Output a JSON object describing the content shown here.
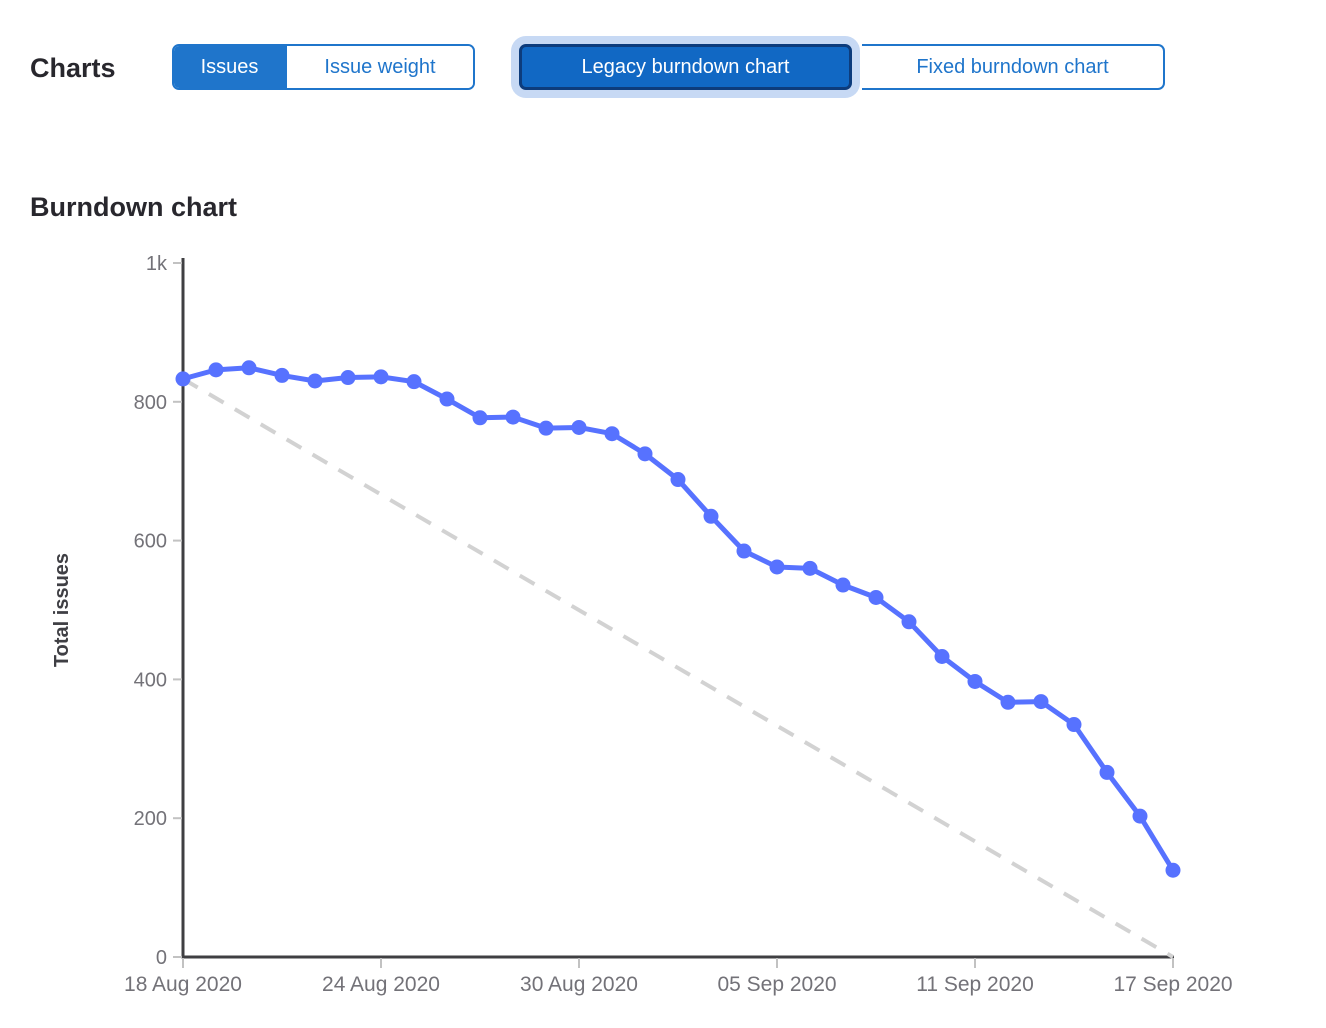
{
  "header": {
    "charts_label": "Charts",
    "type_toggle": {
      "issues": "Issues",
      "issue_weight": "Issue weight",
      "selected": "Issues"
    },
    "chart_toggle": {
      "legacy": "Legacy burndown chart",
      "fixed": "Fixed burndown chart",
      "selected": "Legacy burndown chart"
    }
  },
  "section_title": "Burndown chart",
  "chart_data": {
    "type": "line",
    "title": "Burndown chart",
    "xlabel": "",
    "ylabel": "Total issues",
    "ylim": [
      0,
      1000
    ],
    "grid": false,
    "legend_position": "none",
    "y_ticks": [
      {
        "value": 0,
        "label": "0"
      },
      {
        "value": 200,
        "label": "200"
      },
      {
        "value": 400,
        "label": "400"
      },
      {
        "value": 600,
        "label": "600"
      },
      {
        "value": 800,
        "label": "800"
      },
      {
        "value": 1000,
        "label": "1k"
      }
    ],
    "x_range_days": [
      0,
      30
    ],
    "x_ticks": [
      {
        "day": 0,
        "label": "18 Aug 2020"
      },
      {
        "day": 6,
        "label": "24 Aug 2020"
      },
      {
        "day": 12,
        "label": "30 Aug 2020"
      },
      {
        "day": 18,
        "label": "05 Sep 2020"
      },
      {
        "day": 24,
        "label": "11 Sep 2020"
      },
      {
        "day": 30,
        "label": "17 Sep 2020"
      }
    ],
    "series": [
      {
        "name": "Total issues remaining",
        "type": "line",
        "style": "solid",
        "marker": "circle",
        "color": "#5772ff",
        "x_days": [
          0,
          1,
          2,
          3,
          4,
          5,
          6,
          7,
          8,
          9,
          10,
          11,
          12,
          13,
          14,
          15,
          16,
          17,
          18,
          19,
          20,
          21,
          22,
          23,
          24,
          25,
          26,
          27,
          28,
          29,
          30
        ],
        "values": [
          833,
          846,
          849,
          838,
          830,
          835,
          836,
          829,
          804,
          777,
          778,
          762,
          763,
          754,
          725,
          688,
          635,
          585,
          562,
          560,
          536,
          518,
          483,
          433,
          397,
          367,
          368,
          335,
          266,
          203,
          125
        ]
      },
      {
        "name": "Guideline",
        "type": "line",
        "style": "dashed",
        "marker": "none",
        "color": "#d2d2d2",
        "points": [
          [
            0,
            833
          ],
          [
            30,
            0
          ]
        ]
      }
    ]
  },
  "colors": {
    "accent_blue": "#1f75cb",
    "selected_button_bg": "#1168c4",
    "selected_button_border": "#0d3c7c",
    "focus_ring": "#c7d9f4",
    "series_line": "#5772ff",
    "guideline": "#d2d2d2",
    "axis_line": "#3f3f42",
    "tick_mark": "#c2c2c2",
    "tick_text": "#737278",
    "axis_title_text": "#3f3f44",
    "heading_text": "#28272d"
  }
}
